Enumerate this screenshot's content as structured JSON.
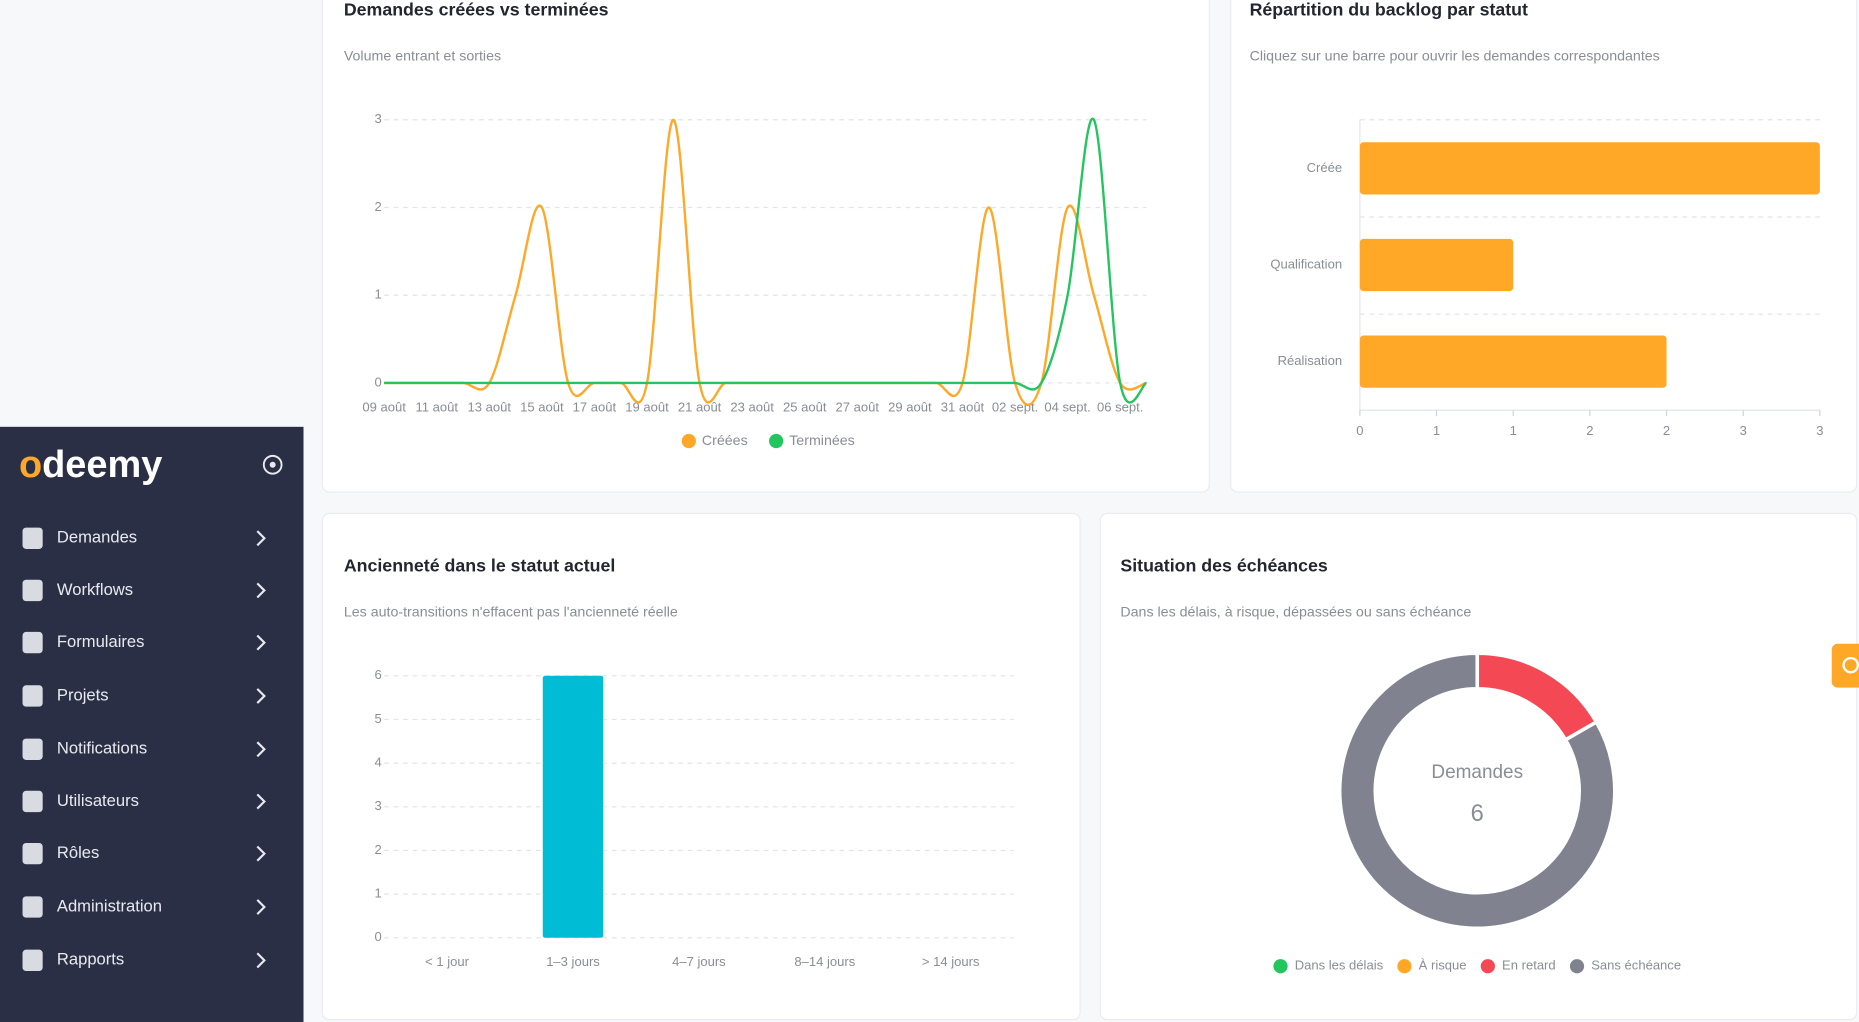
{
  "sidebar": {
    "logo": "odeemy",
    "items": [
      "Demandes",
      "Workflows",
      "Formulaires",
      "Projets",
      "Notifications",
      "Utilisateurs",
      "Rôles",
      "Administration",
      "Rapports"
    ]
  },
  "chart_data": [
    {
      "type": "line",
      "title": "Demandes créées vs terminées",
      "subtitle": "Volume entrant et sorties",
      "categories": [
        "09 août",
        null,
        "11 août",
        null,
        "13 août",
        null,
        "15 août",
        null,
        "17 août",
        null,
        "19 août",
        null,
        "21 août",
        null,
        "23 août",
        null,
        "25 août",
        null,
        "27 août",
        null,
        "29 août",
        null,
        "31 août",
        null,
        "02 sept.",
        null,
        "04 sept.",
        null,
        "06 sept.",
        null
      ],
      "series": [
        {
          "name": "Créées",
          "color": "#ffa726",
          "values": [
            0,
            0,
            0,
            0,
            0,
            1,
            2,
            0,
            0,
            0,
            0,
            3,
            0,
            0,
            0,
            0,
            0,
            0,
            0,
            0,
            0,
            0,
            0,
            2,
            0,
            0,
            2,
            1,
            0,
            0
          ]
        },
        {
          "name": "Terminées",
          "color": "#22c55e",
          "values": [
            0,
            0,
            0,
            0,
            0,
            0,
            0,
            0,
            0,
            0,
            0,
            0,
            0,
            0,
            0,
            0,
            0,
            0,
            0,
            0,
            0,
            0,
            0,
            0,
            0,
            0,
            1,
            3,
            0,
            0
          ]
        }
      ],
      "ylim": [
        0,
        3
      ],
      "yticks": [
        0,
        1,
        2,
        3
      ],
      "grid": true,
      "legend": "bottom"
    },
    {
      "type": "hbar",
      "title": "Répartition du backlog par statut",
      "subtitle": "Cliquez sur une barre pour ouvrir les demandes correspondantes",
      "categories": [
        "Créée",
        "Qualification",
        "Réalisation"
      ],
      "values": [
        3,
        1,
        2
      ],
      "color": "#ffa726",
      "xlim": [
        0,
        3
      ],
      "xticks": [
        0,
        {
          "value": 0.5,
          "label": "1"
        },
        1,
        {
          "value": 1.5,
          "label": "2"
        },
        2,
        {
          "value": 2.5,
          "label": "3"
        },
        3
      ]
    },
    {
      "type": "bar",
      "title": "Ancienneté dans le statut actuel",
      "subtitle": "Les auto-transitions n'effacent pas l'ancienneté réelle",
      "categories": [
        "< 1 jour",
        "1–3 jours",
        "4–7 jours",
        "8–14 jours",
        "> 14 jours"
      ],
      "values": [
        0,
        6,
        0,
        0,
        0
      ],
      "color": "#00bcd4",
      "ylim": [
        0,
        6
      ],
      "yticks": [
        0,
        1,
        2,
        3,
        4,
        5,
        6
      ],
      "grid": true
    },
    {
      "type": "donut",
      "title": "Situation des échéances",
      "subtitle": "Dans les délais, à risque, dépassées ou sans échéance",
      "categories": [
        "Dans les délais",
        "À risque",
        "En retard",
        "Sans échéance"
      ],
      "values": [
        0,
        0,
        1,
        5
      ],
      "colors": [
        "#22c55e",
        "#ffa726",
        "#f44955",
        "#80838f"
      ],
      "center_label": "Demandes",
      "center_value": 6,
      "legend": "bottom"
    }
  ]
}
